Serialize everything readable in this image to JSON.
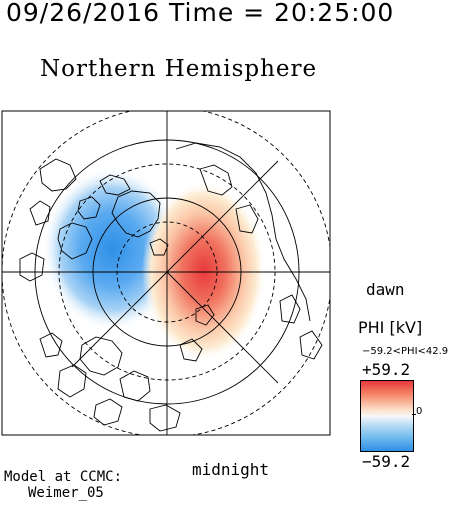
{
  "header": {
    "timestamp": "09/26/2016 Time = 20:25:00",
    "title": "Northern Hemisphere"
  },
  "map": {
    "projection": "polar",
    "orientation_labels": {
      "dawn": "dawn",
      "midnight": "midnight"
    },
    "positive_cell_color": "#e8383c",
    "negative_cell_color": "#2e8fe6",
    "coastline_color": "#000000"
  },
  "legend": {
    "title": "PHI [kV]",
    "range_text": "−59.2<PHI<42.9",
    "max_label": "+59.2",
    "min_label": "−59.2",
    "zero_label": "0",
    "colors": [
      "#e8383c",
      "#f58a6a",
      "#fde3cf",
      "#f7f7f7",
      "#cfe6f7",
      "#7ac0ee",
      "#2e8fe6"
    ]
  },
  "credits": {
    "line1": "Model at CCMC:",
    "line2": "Weimer_05"
  }
}
